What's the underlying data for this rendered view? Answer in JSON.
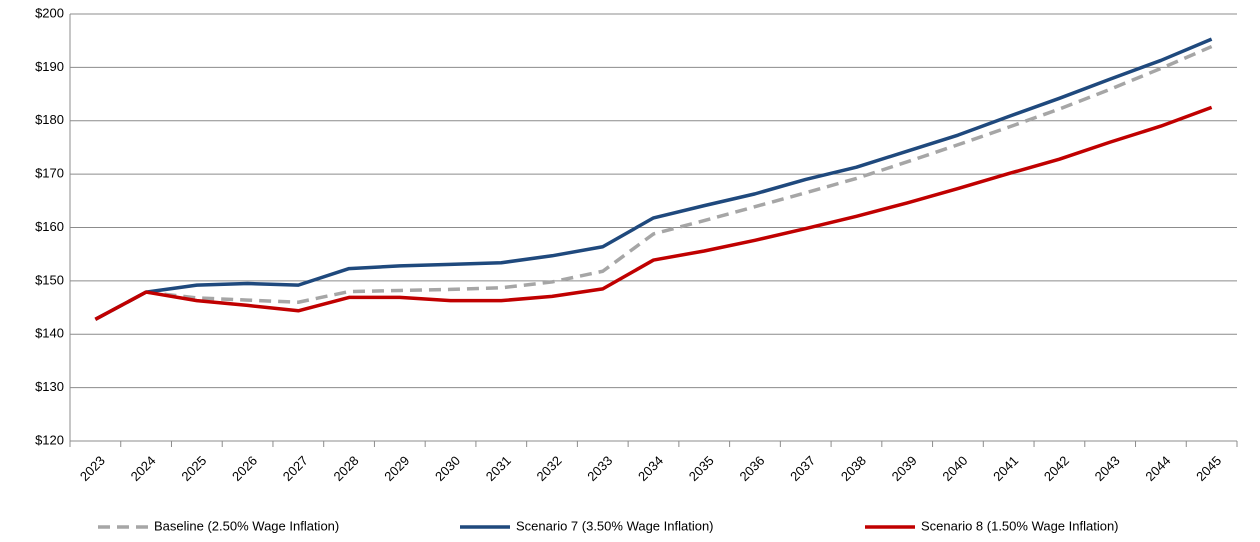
{
  "chart_data": {
    "type": "line",
    "categories": [
      "2023",
      "2024",
      "2025",
      "2026",
      "2027",
      "2028",
      "2029",
      "2030",
      "2031",
      "2032",
      "2033",
      "2034",
      "2035",
      "2036",
      "2037",
      "2038",
      "2039",
      "2040",
      "2041",
      "2042",
      "2043",
      "2044",
      "2045"
    ],
    "series": [
      {
        "name": "Baseline (2.50% Wage Inflation)",
        "color": "#a6a6a6",
        "dashed": true,
        "values": [
          142.8,
          147.9,
          146.8,
          146.4,
          146.0,
          148.0,
          148.2,
          148.4,
          148.7,
          149.8,
          151.8,
          158.8,
          161.3,
          163.9,
          166.5,
          169.2,
          172.3,
          175.5,
          178.8,
          182.2,
          185.9,
          189.8,
          193.9
        ]
      },
      {
        "name": "Scenario 7 (3.50% Wage Inflation)",
        "color": "#1f497d",
        "dashed": false,
        "values": [
          142.8,
          147.9,
          149.2,
          149.5,
          149.2,
          152.3,
          152.8,
          153.1,
          153.4,
          154.7,
          156.4,
          161.8,
          164.1,
          166.3,
          169.0,
          171.3,
          174.3,
          177.3,
          180.8,
          184.2,
          187.8,
          191.3,
          195.3
        ]
      },
      {
        "name": "Scenario 8 (1.50% Wage Inflation)",
        "color": "#c00000",
        "dashed": false,
        "values": [
          142.8,
          147.9,
          146.3,
          145.4,
          144.4,
          146.9,
          146.9,
          146.3,
          146.3,
          147.1,
          148.5,
          153.9,
          155.6,
          157.6,
          159.8,
          162.1,
          164.6,
          167.3,
          170.1,
          172.8,
          176.0,
          179.0,
          182.5
        ]
      }
    ],
    "ylim": [
      120,
      200
    ],
    "yticks": [
      {
        "value": 120,
        "label": "$120"
      },
      {
        "value": 130,
        "label": "$130"
      },
      {
        "value": 140,
        "label": "$140"
      },
      {
        "value": 150,
        "label": "$150"
      },
      {
        "value": 160,
        "label": "$160"
      },
      {
        "value": 170,
        "label": "$170"
      },
      {
        "value": 180,
        "label": "$180"
      },
      {
        "value": 190,
        "label": "$190"
      },
      {
        "value": 200,
        "label": "$200"
      }
    ],
    "grid": true,
    "legend": "bottom"
  }
}
